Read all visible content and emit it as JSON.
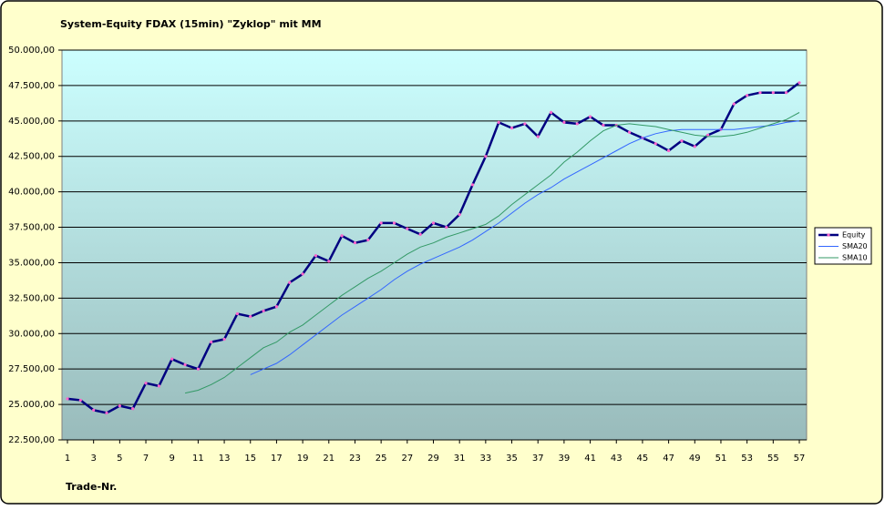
{
  "chart_data": {
    "type": "line",
    "title": "System-Equity FDAX (15min) \"Zyklop\" mit MM",
    "x_label": "Trade-Nr.",
    "x": [
      1,
      2,
      3,
      4,
      5,
      6,
      7,
      8,
      9,
      10,
      11,
      12,
      13,
      14,
      15,
      16,
      17,
      18,
      19,
      20,
      21,
      22,
      23,
      24,
      25,
      26,
      27,
      28,
      29,
      30,
      31,
      32,
      33,
      34,
      35,
      36,
      37,
      38,
      39,
      40,
      41,
      42,
      43,
      44,
      45,
      46,
      47,
      48,
      49,
      50,
      51,
      52,
      53,
      54,
      55,
      56,
      57
    ],
    "xlim": [
      1,
      57
    ],
    "xticks": [
      1,
      3,
      5,
      7,
      9,
      11,
      13,
      15,
      17,
      19,
      21,
      23,
      25,
      27,
      29,
      31,
      33,
      35,
      37,
      39,
      41,
      43,
      45,
      47,
      49,
      51,
      53,
      55,
      57
    ],
    "ylim": [
      22500,
      50000
    ],
    "yticks": [
      {
        "value": 22500,
        "label": "22.500,00"
      },
      {
        "value": 25000,
        "label": "25.000,00"
      },
      {
        "value": 27500,
        "label": "27.500,00"
      },
      {
        "value": 30000,
        "label": "30.000,00"
      },
      {
        "value": 32500,
        "label": "32.500,00"
      },
      {
        "value": 35000,
        "label": "35.000,00"
      },
      {
        "value": 37500,
        "label": "37.500,00"
      },
      {
        "value": 40000,
        "label": "40.000,00"
      },
      {
        "value": 42500,
        "label": "42.500,00"
      },
      {
        "value": 45000,
        "label": "45.000,00"
      },
      {
        "value": 47500,
        "label": "47.500,00"
      },
      {
        "value": 50000,
        "label": "50.000,00"
      }
    ],
    "grid": true,
    "legend": "right",
    "series": [
      {
        "name": "Equity",
        "color": "#000080",
        "marker_color": "#ff66cc",
        "values": [
          25400,
          25300,
          24600,
          24400,
          24900,
          24700,
          26500,
          26300,
          28200,
          27800,
          27500,
          29400,
          29600,
          31400,
          31200,
          31600,
          31900,
          33600,
          34200,
          35500,
          35100,
          36900,
          36400,
          36600,
          37800,
          37800,
          37400,
          37000,
          37800,
          37500,
          38400,
          40500,
          42500,
          44900,
          44500,
          44800,
          43900,
          45600,
          44900,
          44800,
          45300,
          44700,
          44700,
          44200,
          43800,
          43400,
          42900,
          43600,
          43200,
          44000,
          44400,
          46200,
          46800,
          47000,
          47000,
          47000,
          47700
        ]
      },
      {
        "name": "SMA20",
        "color": "#3366ff",
        "values": [
          null,
          null,
          null,
          null,
          null,
          null,
          null,
          null,
          null,
          null,
          null,
          null,
          null,
          null,
          27100,
          27500,
          27900,
          28500,
          29200,
          29900,
          30600,
          31300,
          31900,
          32500,
          33100,
          33800,
          34400,
          34900,
          35300,
          35700,
          36100,
          36600,
          37200,
          37800,
          38500,
          39200,
          39800,
          40300,
          40900,
          41400,
          41900,
          42400,
          42900,
          43400,
          43800,
          44100,
          44300,
          44400,
          44400,
          44400,
          44400,
          44400,
          44500,
          44600,
          44700,
          44900,
          45000
        ]
      },
      {
        "name": "SMA10",
        "color": "#339966",
        "values": [
          null,
          null,
          null,
          null,
          null,
          null,
          null,
          null,
          null,
          25800,
          26000,
          26400,
          26900,
          27600,
          28300,
          29000,
          29400,
          30100,
          30600,
          31300,
          32000,
          32700,
          33300,
          33900,
          34400,
          35000,
          35600,
          36100,
          36400,
          36800,
          37100,
          37400,
          37700,
          38300,
          39100,
          39800,
          40500,
          41200,
          42100,
          42800,
          43600,
          44300,
          44700,
          44800,
          44700,
          44600,
          44400,
          44200,
          44000,
          43900,
          43900,
          44000,
          44200,
          44500,
          44800,
          45100,
          45600
        ]
      }
    ]
  }
}
